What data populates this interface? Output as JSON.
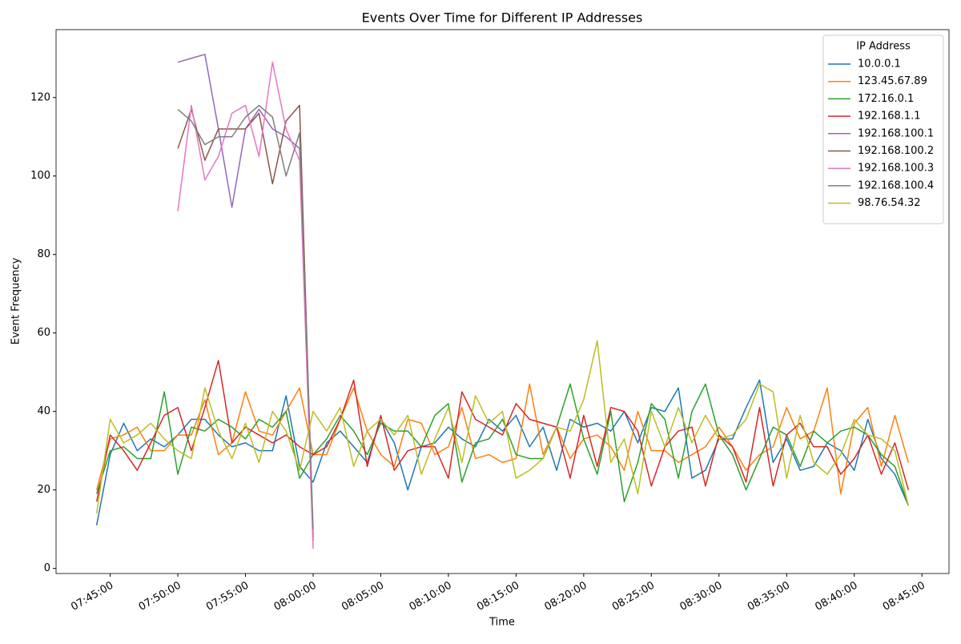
{
  "chart_data": {
    "type": "line",
    "title": "Events Over Time for Different IP Addresses",
    "x_label": "Time",
    "y_label": "Event Frequency",
    "legend_title": "IP Address",
    "legend": "upper right",
    "grid": false,
    "x": [
      "07:44:00",
      "07:45:00",
      "07:46:00",
      "07:47:00",
      "07:48:00",
      "07:49:00",
      "07:50:00",
      "07:51:00",
      "07:52:00",
      "07:53:00",
      "07:54:00",
      "07:55:00",
      "07:56:00",
      "07:57:00",
      "07:58:00",
      "07:59:00",
      "08:00:00",
      "08:01:00",
      "08:02:00",
      "08:03:00",
      "08:04:00",
      "08:05:00",
      "08:06:00",
      "08:07:00",
      "08:08:00",
      "08:09:00",
      "08:10:00",
      "08:11:00",
      "08:12:00",
      "08:13:00",
      "08:14:00",
      "08:15:00",
      "08:16:00",
      "08:17:00",
      "08:18:00",
      "08:19:00",
      "08:20:00",
      "08:21:00",
      "08:22:00",
      "08:23:00",
      "08:24:00",
      "08:25:00",
      "08:26:00",
      "08:27:00",
      "08:28:00",
      "08:29:00",
      "08:30:00",
      "08:31:00",
      "08:32:00",
      "08:33:00",
      "08:34:00",
      "08:35:00",
      "08:36:00",
      "08:37:00",
      "08:38:00",
      "08:39:00",
      "08:40:00",
      "08:41:00",
      "08:42:00",
      "08:43:00",
      "08:44:00"
    ],
    "xlim": [
      "07:41:00",
      "08:47:00"
    ],
    "xticks": [
      "07:45:00",
      "07:50:00",
      "07:55:00",
      "08:00:00",
      "08:05:00",
      "08:10:00",
      "08:15:00",
      "08:20:00",
      "08:25:00",
      "08:30:00",
      "08:35:00",
      "08:40:00",
      "08:45:00"
    ],
    "ylim": [
      -1.3,
      137.3
    ],
    "yticks": [
      0,
      20,
      40,
      60,
      80,
      100,
      120
    ],
    "series": [
      {
        "name": "10.0.0.1",
        "color": "#1f77b4",
        "values": [
          11,
          29,
          37,
          30,
          33,
          31,
          34,
          38,
          38,
          34,
          31,
          32,
          30,
          30,
          44,
          26,
          22,
          32,
          35,
          31,
          27,
          38,
          32,
          20,
          31,
          32,
          36,
          33,
          31,
          38,
          35,
          39,
          31,
          36,
          25,
          38,
          36,
          37,
          35,
          40,
          32,
          41,
          40,
          46,
          23,
          25,
          33,
          33,
          41,
          48,
          27,
          33,
          25,
          26,
          32,
          30,
          25,
          38,
          28,
          24,
          16
        ]
      },
      {
        "name": "123.45.67.89",
        "color": "#ff7f0e",
        "values": [
          20,
          33,
          34,
          36,
          30,
          30,
          34,
          34,
          43,
          29,
          32,
          45,
          35,
          34,
          40,
          46,
          29,
          29,
          38,
          46,
          35,
          29,
          26,
          38,
          37,
          29,
          31,
          41,
          28,
          29,
          27,
          28,
          47,
          29,
          36,
          28,
          33,
          34,
          31,
          25,
          40,
          30,
          30,
          27,
          29,
          31,
          36,
          31,
          25,
          29,
          31,
          41,
          33,
          35,
          46,
          19,
          37,
          41,
          26,
          39,
          27
        ]
      },
      {
        "name": "172.16.0.1",
        "color": "#2ca02c",
        "values": [
          19,
          30,
          31,
          28,
          28,
          45,
          24,
          36,
          35,
          38,
          36,
          33,
          38,
          36,
          40,
          23,
          29,
          33,
          39,
          35,
          29,
          37,
          35,
          35,
          31,
          39,
          42,
          22,
          32,
          33,
          38,
          29,
          28,
          28,
          36,
          47,
          33,
          24,
          40,
          17,
          27,
          42,
          38,
          23,
          40,
          47,
          34,
          29,
          20,
          28,
          36,
          34,
          26,
          35,
          32,
          35,
          36,
          34,
          29,
          26,
          16
        ]
      },
      {
        "name": "192.168.1.1",
        "color": "#d62728",
        "values": [
          17,
          34,
          30,
          25,
          32,
          39,
          41,
          30,
          41,
          53,
          32,
          36,
          34,
          32,
          34,
          31,
          29,
          31,
          38,
          48,
          26,
          39,
          25,
          30,
          31,
          31,
          23,
          45,
          38,
          36,
          34,
          42,
          38,
          37,
          36,
          23,
          39,
          26,
          41,
          40,
          35,
          21,
          31,
          35,
          36,
          21,
          34,
          31,
          22,
          41,
          21,
          34,
          37,
          31,
          31,
          24,
          28,
          34,
          24,
          32,
          20
        ]
      },
      {
        "name": "192.168.100.1",
        "color": "#9467bd",
        "values": [
          null,
          null,
          null,
          null,
          null,
          null,
          129,
          130,
          131,
          112,
          92,
          112,
          117,
          112,
          110,
          107,
          8,
          null,
          null,
          null,
          null,
          null,
          null,
          null,
          null,
          null,
          null,
          null,
          null,
          null,
          null,
          null,
          null,
          null,
          null,
          null,
          null,
          null,
          null,
          null,
          null,
          null,
          null,
          null,
          null,
          null,
          null,
          null,
          null,
          null,
          null,
          null,
          null,
          null,
          null,
          null,
          null,
          null,
          null,
          null,
          null
        ]
      },
      {
        "name": "192.168.100.2",
        "color": "#8c564b",
        "values": [
          null,
          null,
          null,
          null,
          null,
          null,
          107,
          117,
          104,
          112,
          112,
          112,
          116,
          98,
          114,
          118,
          7,
          null,
          null,
          null,
          null,
          null,
          null,
          null,
          null,
          null,
          null,
          null,
          null,
          null,
          null,
          null,
          null,
          null,
          null,
          null,
          null,
          null,
          null,
          null,
          null,
          null,
          null,
          null,
          null,
          null,
          null,
          null,
          null,
          null,
          null,
          null,
          null,
          null,
          null,
          null,
          null,
          null,
          null,
          null,
          null
        ]
      },
      {
        "name": "192.168.100.3",
        "color": "#e377c2",
        "values": [
          null,
          null,
          null,
          null,
          null,
          null,
          91,
          118,
          99,
          105,
          116,
          118,
          105,
          129,
          112,
          104,
          5,
          null,
          null,
          null,
          null,
          null,
          null,
          null,
          null,
          null,
          null,
          null,
          null,
          null,
          null,
          null,
          null,
          null,
          null,
          null,
          null,
          null,
          null,
          null,
          null,
          null,
          null,
          null,
          null,
          null,
          null,
          null,
          null,
          null,
          null,
          null,
          null,
          null,
          null,
          null,
          null,
          null,
          null,
          null,
          null
        ]
      },
      {
        "name": "192.168.100.4",
        "color": "#7f7f7f",
        "values": [
          null,
          null,
          null,
          null,
          null,
          null,
          117,
          114,
          108,
          110,
          110,
          115,
          118,
          115,
          100,
          111,
          10,
          null,
          null,
          null,
          null,
          null,
          null,
          null,
          null,
          null,
          null,
          null,
          null,
          null,
          null,
          null,
          null,
          null,
          null,
          null,
          null,
          null,
          null,
          null,
          null,
          null,
          null,
          null,
          null,
          null,
          null,
          null,
          null,
          null,
          null,
          null,
          null,
          null,
          null,
          null,
          null,
          null,
          null,
          null,
          null
        ]
      },
      {
        "name": "98.76.54.32",
        "color": "#bcbd22",
        "values": [
          14,
          38,
          32,
          34,
          37,
          33,
          30,
          28,
          46,
          35,
          28,
          37,
          27,
          40,
          35,
          25,
          40,
          35,
          41,
          26,
          35,
          38,
          34,
          39,
          24,
          33,
          41,
          27,
          44,
          37,
          40,
          23,
          25,
          28,
          36,
          35,
          43,
          58,
          27,
          33,
          19,
          40,
          31,
          41,
          32,
          39,
          33,
          34,
          38,
          47,
          45,
          23,
          39,
          27,
          24,
          29,
          38,
          34,
          33,
          30,
          16
        ]
      }
    ]
  }
}
